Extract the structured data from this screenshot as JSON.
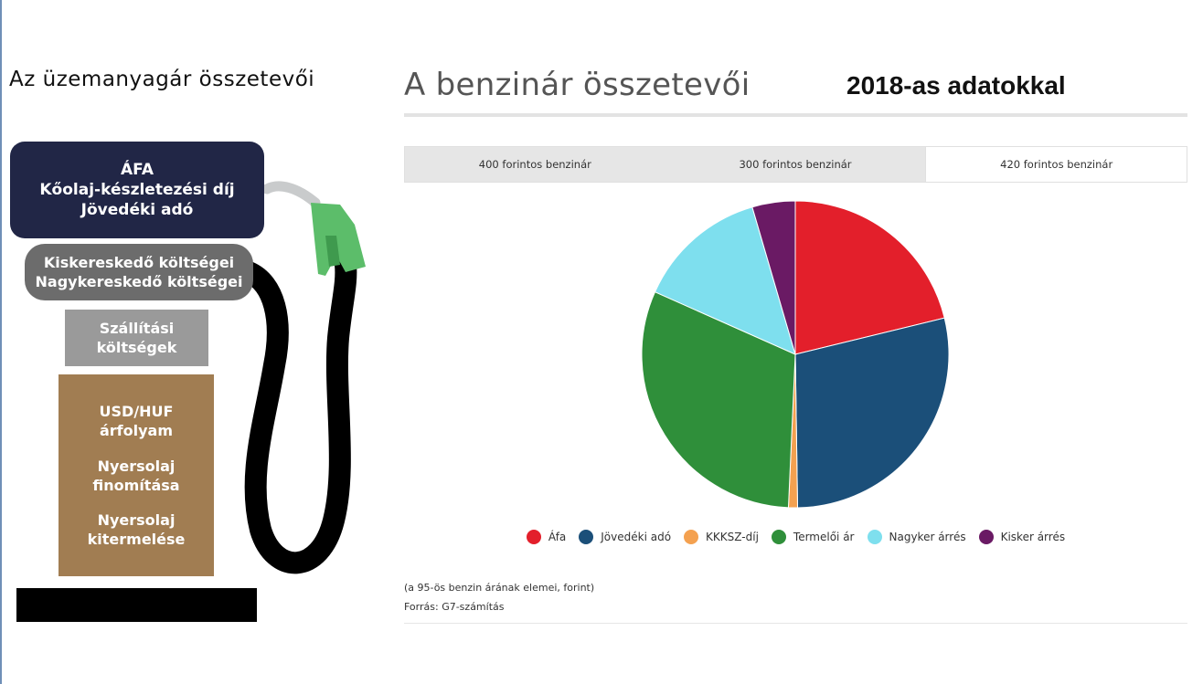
{
  "left": {
    "title": "Az üzemanyagár összetevői",
    "tax_lines": [
      "ÁFA",
      "Kőolaj-készletezési díj",
      "Jövedéki adó"
    ],
    "trade_lines": [
      "Kiskereskedő költségei",
      "Nagykereskedő költségei"
    ],
    "transport_lines": [
      "Szállítási",
      "költségek"
    ],
    "crude_groups": [
      [
        "USD/HUF",
        "árfolyam"
      ],
      [
        "Nyersolaj",
        "finomítása"
      ],
      [
        "Nyersolaj",
        "kitermelése"
      ]
    ],
    "colors": {
      "tax": "#212646",
      "trade": "#6c6c6c",
      "transport": "#9a9a9a",
      "crude": "#a17d52",
      "nozzle": "#5cbd6a",
      "hose": "#000000"
    }
  },
  "chart": {
    "title": "A benzinár összetevői",
    "subtitle": "2018-as adatokkal",
    "tabs": [
      "400 forintos benzinár",
      "300 forintos benzinár",
      "420 forintos benzinár"
    ],
    "active_tab": 2,
    "note": "(a 95-ös benzin árának elemei, forint)",
    "source": "Forrás: G7-számítás"
  },
  "chart_data": {
    "type": "pie",
    "title": "A benzinár összetevői",
    "categories": [
      "Áfa",
      "Jövedéki adó",
      "KKKSZ-díj",
      "Termelői ár",
      "Nagyker árrés",
      "Kisker árrés"
    ],
    "values": [
      89,
      120,
      4,
      130,
      58,
      19
    ],
    "colors": [
      "#e31f2b",
      "#1b4f79",
      "#f4a150",
      "#2f8f3a",
      "#7edfee",
      "#6a1a64"
    ],
    "start_angle_deg": 0,
    "direction": "clockwise",
    "legend_position": "bottom"
  }
}
